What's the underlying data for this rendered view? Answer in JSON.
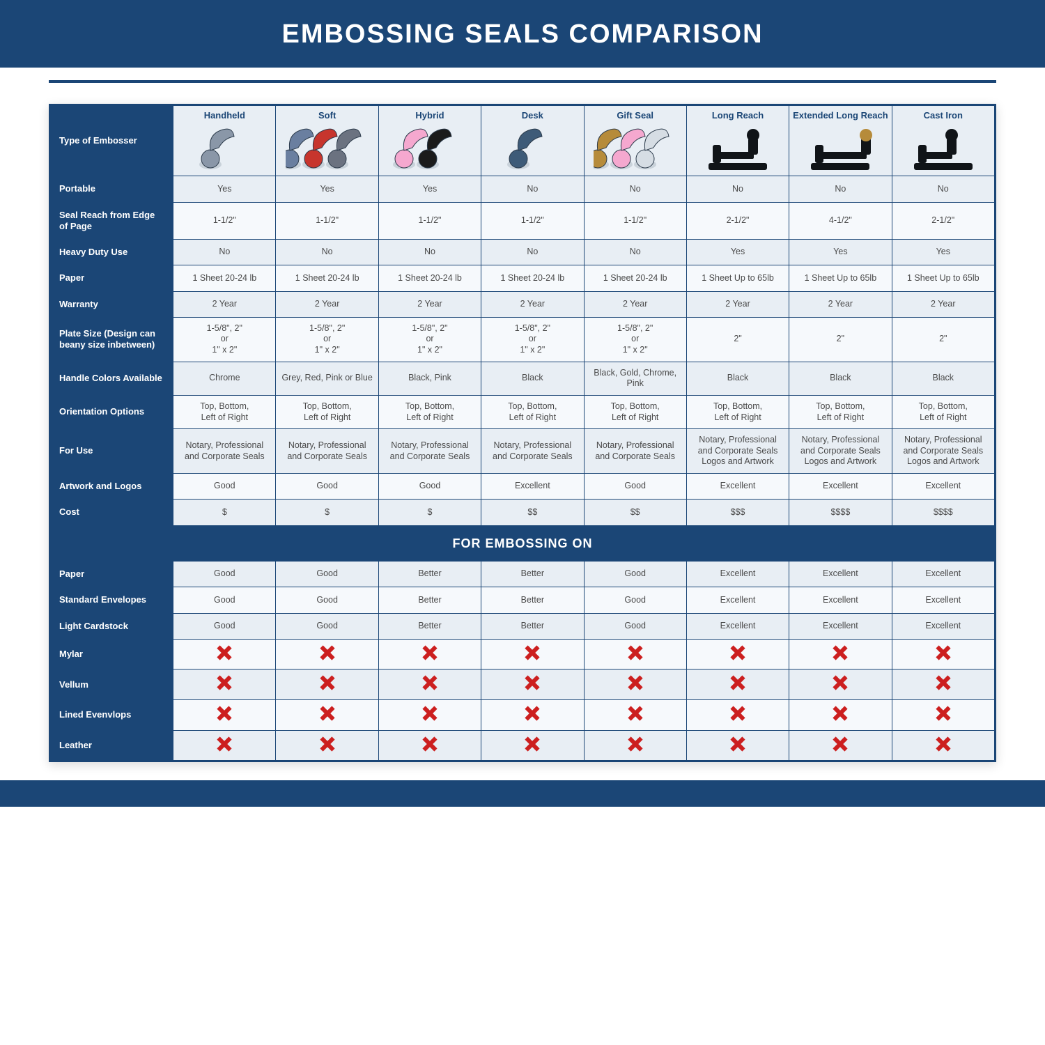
{
  "page_title": "EMBOSSING SEALS COMPARISON",
  "section_title": "FOR EMBOSSING ON",
  "header_row_label": "Type of Embosser",
  "colors": {
    "brand_blue": "#1b4676",
    "row_alt_a": "#e8eef4",
    "row_alt_b": "#f6f9fc",
    "cross_red": "#cc1f1f",
    "background": "#ffffff"
  },
  "columns": [
    {
      "name": "Handheld",
      "icon_palette": [
        "#8a97a8",
        "#2c3b4d"
      ]
    },
    {
      "name": "Soft",
      "icon_palette": [
        "#6a7fa0",
        "#c7352d",
        "#6b7280"
      ]
    },
    {
      "name": "Hybrid",
      "icon_palette": [
        "#f5a8cf",
        "#1b1b1b"
      ]
    },
    {
      "name": "Desk",
      "icon_palette": [
        "#3e5b78",
        "#1e2a36"
      ]
    },
    {
      "name": "Gift Seal",
      "icon_palette": [
        "#b68b3a",
        "#f5a8cf",
        "#d6dde4"
      ]
    },
    {
      "name": "Long Reach",
      "icon_palette": [
        "#101418"
      ]
    },
    {
      "name": "Extended Long Reach",
      "icon_palette": [
        "#101418",
        "#b68b3a"
      ]
    },
    {
      "name": "Cast Iron",
      "icon_palette": [
        "#101418"
      ]
    }
  ],
  "rows_main": [
    {
      "label": "Portable",
      "values": [
        "Yes",
        "Yes",
        "Yes",
        "No",
        "No",
        "No",
        "No",
        "No"
      ]
    },
    {
      "label": "Seal Reach from Edge of Page",
      "values": [
        "1-1/2\"",
        "1-1/2\"",
        "1-1/2\"",
        "1-1/2\"",
        "1-1/2\"",
        "2-1/2\"",
        "4-1/2\"",
        "2-1/2\""
      ]
    },
    {
      "label": "Heavy Duty Use",
      "values": [
        "No",
        "No",
        "No",
        "No",
        "No",
        "Yes",
        "Yes",
        "Yes"
      ]
    },
    {
      "label": "Paper",
      "values": [
        "1 Sheet 20-24 lb",
        "1 Sheet 20-24 lb",
        "1 Sheet 20-24 lb",
        "1 Sheet 20-24 lb",
        "1 Sheet 20-24 lb",
        "1 Sheet Up to 65lb",
        "1 Sheet Up to 65lb",
        "1 Sheet Up to 65lb"
      ]
    },
    {
      "label": "Warranty",
      "values": [
        "2 Year",
        "2 Year",
        "2 Year",
        "2 Year",
        "2 Year",
        "2 Year",
        "2 Year",
        "2 Year"
      ]
    },
    {
      "label": "Plate Size (Design can beany size inbetween)",
      "values": [
        "1-5/8\", 2\"\nor\n1\" x 2\"",
        "1-5/8\", 2\"\nor\n1\" x 2\"",
        "1-5/8\", 2\"\nor\n1\" x 2\"",
        "1-5/8\", 2\"\nor\n1\" x 2\"",
        "1-5/8\", 2\"\nor\n1\" x 2\"",
        "2\"",
        "2\"",
        "2\""
      ]
    },
    {
      "label": "Handle Colors Available",
      "values": [
        "Chrome",
        "Grey, Red, Pink or Blue",
        "Black, Pink",
        "Black",
        "Black, Gold, Chrome, Pink",
        "Black",
        "Black",
        "Black"
      ]
    },
    {
      "label": "Orientation Options",
      "values": [
        "Top, Bottom,\nLeft of Right",
        "Top, Bottom,\nLeft of Right",
        "Top, Bottom,\nLeft of Right",
        "Top, Bottom,\nLeft of Right",
        "Top, Bottom,\nLeft of Right",
        "Top, Bottom,\nLeft of Right",
        "Top, Bottom,\nLeft of Right",
        "Top, Bottom,\nLeft of Right"
      ]
    },
    {
      "label": "For Use",
      "values": [
        "Notary, Professional and Corporate Seals",
        "Notary, Professional and Corporate Seals",
        "Notary, Professional and Corporate Seals",
        "Notary, Professional and Corporate Seals",
        "Notary, Professional and Corporate Seals",
        "Notary, Professional and Corporate Seals Logos and Artwork",
        "Notary, Professional and Corporate Seals Logos and Artwork",
        "Notary, Professional and Corporate Seals Logos and Artwork"
      ]
    },
    {
      "label": "Artwork and Logos",
      "values": [
        "Good",
        "Good",
        "Good",
        "Excellent",
        "Good",
        "Excellent",
        "Excellent",
        "Excellent"
      ]
    },
    {
      "label": "Cost",
      "values": [
        "$",
        "$",
        "$",
        "$$",
        "$$",
        "$$$",
        "$$$$",
        "$$$$"
      ]
    }
  ],
  "rows_embossing": [
    {
      "label": "Paper",
      "values": [
        "Good",
        "Good",
        "Better",
        "Better",
        "Good",
        "Excellent",
        "Excellent",
        "Excellent"
      ]
    },
    {
      "label": "Standard Envelopes",
      "values": [
        "Good",
        "Good",
        "Better",
        "Better",
        "Good",
        "Excellent",
        "Excellent",
        "Excellent"
      ]
    },
    {
      "label": "Light Cardstock",
      "values": [
        "Good",
        "Good",
        "Better",
        "Better",
        "Good",
        "Excellent",
        "Excellent",
        "Excellent"
      ]
    },
    {
      "label": "Mylar",
      "values": [
        "X",
        "X",
        "X",
        "X",
        "X",
        "X",
        "X",
        "X"
      ]
    },
    {
      "label": "Vellum",
      "values": [
        "X",
        "X",
        "X",
        "X",
        "X",
        "X",
        "X",
        "X"
      ]
    },
    {
      "label": "Lined Evenvlops",
      "values": [
        "X",
        "X",
        "X",
        "X",
        "X",
        "X",
        "X",
        "X"
      ]
    },
    {
      "label": "Leather",
      "values": [
        "X",
        "X",
        "X",
        "X",
        "X",
        "X",
        "X",
        "X"
      ]
    }
  ]
}
